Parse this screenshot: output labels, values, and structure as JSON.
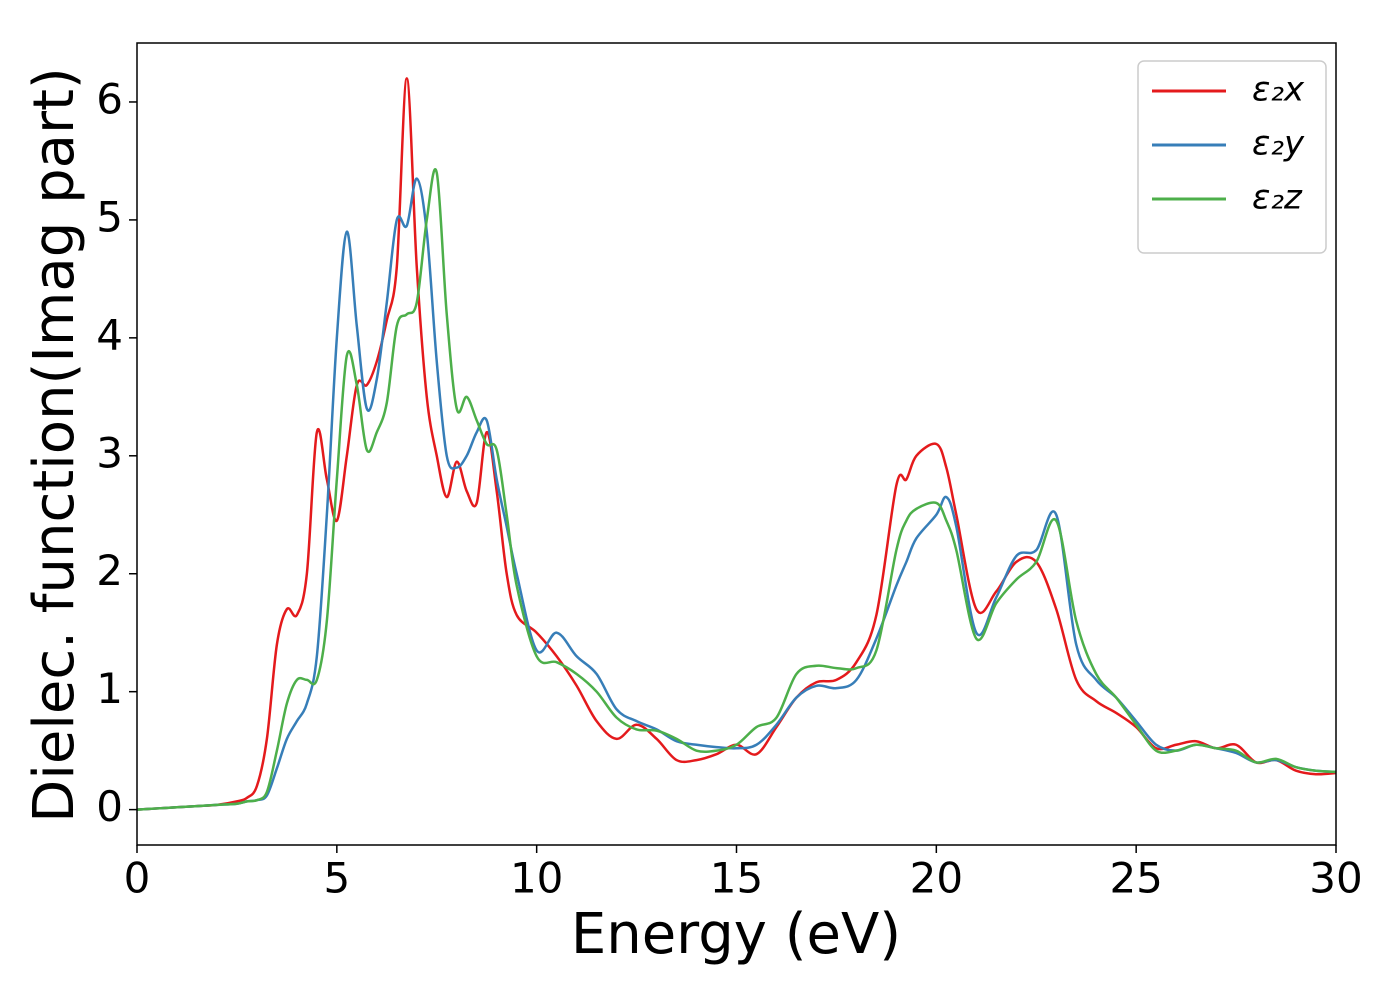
{
  "chart_data": {
    "type": "line",
    "xlabel": "Energy (eV)",
    "ylabel": "Dielec. function(Imag part)",
    "x": [
      0,
      0.5,
      1,
      1.5,
      2,
      2.5,
      2.75,
      3,
      3.25,
      3.5,
      3.75,
      4,
      4.25,
      4.5,
      4.75,
      5,
      5.25,
      5.5,
      5.75,
      6,
      6.25,
      6.5,
      6.75,
      7,
      7.25,
      7.5,
      7.75,
      8,
      8.25,
      8.5,
      8.75,
      9,
      9.25,
      9.5,
      10,
      10.5,
      11,
      11.5,
      12,
      12.5,
      13,
      13.5,
      14,
      14.5,
      15,
      15.5,
      16,
      16.5,
      17,
      17.5,
      18,
      18.5,
      19,
      19.25,
      19.5,
      20,
      20.25,
      20.5,
      21,
      21.5,
      22,
      22.5,
      23,
      23.5,
      24,
      24.5,
      25,
      25.5,
      26,
      26.5,
      27,
      27.5,
      28,
      28.5,
      29,
      29.5,
      30
    ],
    "series": [
      {
        "name": "ε₂x",
        "color": "#e41a1c",
        "values": [
          0,
          0.01,
          0.02,
          0.03,
          0.04,
          0.07,
          0.1,
          0.2,
          0.6,
          1.4,
          1.7,
          1.65,
          2.0,
          3.2,
          2.8,
          2.45,
          3.0,
          3.6,
          3.6,
          3.8,
          4.15,
          4.6,
          6.2,
          4.6,
          3.5,
          3.0,
          2.65,
          2.95,
          2.7,
          2.6,
          3.2,
          2.7,
          2.0,
          1.65,
          1.5,
          1.3,
          1.05,
          0.75,
          0.6,
          0.72,
          0.6,
          0.42,
          0.42,
          0.47,
          0.55,
          0.47,
          0.7,
          0.95,
          1.08,
          1.1,
          1.25,
          1.65,
          2.75,
          2.8,
          3.0,
          3.1,
          2.9,
          2.5,
          1.7,
          1.85,
          2.1,
          2.1,
          1.7,
          1.1,
          0.92,
          0.82,
          0.7,
          0.52,
          0.55,
          0.58,
          0.52,
          0.55,
          0.4,
          0.42,
          0.33,
          0.3,
          0.31
        ]
      },
      {
        "name": "ε₂y",
        "color": "#377eb8",
        "values": [
          0,
          0.01,
          0.02,
          0.03,
          0.04,
          0.05,
          0.07,
          0.08,
          0.12,
          0.35,
          0.6,
          0.75,
          0.9,
          1.3,
          2.5,
          4.0,
          4.9,
          4.1,
          3.4,
          3.65,
          4.3,
          5.0,
          4.95,
          5.35,
          4.9,
          3.8,
          3.0,
          2.9,
          3.0,
          3.2,
          3.3,
          2.8,
          2.4,
          2.0,
          1.35,
          1.5,
          1.3,
          1.15,
          0.85,
          0.75,
          0.68,
          0.58,
          0.55,
          0.53,
          0.52,
          0.55,
          0.72,
          0.95,
          1.05,
          1.03,
          1.1,
          1.45,
          1.9,
          2.1,
          2.3,
          2.5,
          2.65,
          2.4,
          1.5,
          1.8,
          2.15,
          2.2,
          2.5,
          1.4,
          1.1,
          0.95,
          0.75,
          0.55,
          0.5,
          0.55,
          0.52,
          0.48,
          0.4,
          0.42,
          0.36,
          0.33,
          0.32
        ]
      },
      {
        "name": "ε₂z",
        "color": "#4daf4a",
        "values": [
          0,
          0.01,
          0.02,
          0.03,
          0.04,
          0.05,
          0.07,
          0.08,
          0.15,
          0.5,
          0.9,
          1.1,
          1.1,
          1.1,
          1.6,
          2.8,
          3.85,
          3.6,
          3.05,
          3.2,
          3.45,
          4.1,
          4.2,
          4.3,
          5.0,
          5.4,
          4.2,
          3.4,
          3.5,
          3.3,
          3.1,
          3.05,
          2.5,
          1.9,
          1.3,
          1.25,
          1.15,
          1.0,
          0.78,
          0.68,
          0.67,
          0.6,
          0.5,
          0.5,
          0.55,
          0.7,
          0.78,
          1.15,
          1.22,
          1.2,
          1.2,
          1.35,
          2.2,
          2.45,
          2.55,
          2.6,
          2.45,
          2.2,
          1.45,
          1.75,
          1.95,
          2.1,
          2.45,
          1.6,
          1.15,
          0.95,
          0.72,
          0.5,
          0.5,
          0.55,
          0.52,
          0.5,
          0.4,
          0.43,
          0.36,
          0.33,
          0.32
        ]
      }
    ],
    "xlim": [
      0,
      30
    ],
    "xticks": [
      0,
      5,
      10,
      15,
      20,
      25,
      30
    ],
    "ylim": [
      -0.3,
      6.5
    ],
    "yticks": [
      0,
      1,
      2,
      3,
      4,
      5,
      6
    ],
    "legend": "upper right"
  }
}
